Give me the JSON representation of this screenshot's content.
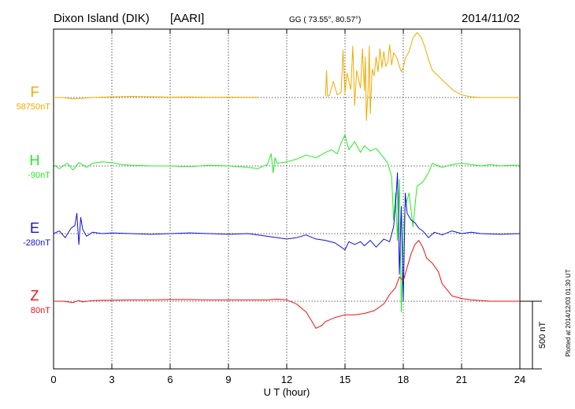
{
  "header": {
    "station": "Dixon Island (DIK)",
    "institute": "[AARI]",
    "coords": "GG ( 73.55°,  80.57°)",
    "date": "2014/11/02"
  },
  "footer": {
    "plotted": "Plotted at 2014/12/03 01:30 UT"
  },
  "chart_data": {
    "type": "line",
    "title": "Dixon Island (DIK)  [AARI]",
    "xlabel": "U T (hour)",
    "ylabel": "",
    "xlim": [
      0,
      24
    ],
    "x_ticks": [
      0,
      3,
      6,
      9,
      12,
      15,
      18,
      21,
      24
    ],
    "x_tick_labels": [
      "0",
      "3",
      "6",
      "9",
      "12",
      "15",
      "18",
      "21",
      "24"
    ],
    "scale_bar": {
      "value_nT": 500,
      "label": "500 nT"
    },
    "grid": true,
    "series": [
      {
        "name": "F",
        "baseline_label": "58750nT",
        "baseline_nT": 58750,
        "color": "#f2ab00",
        "segments": [
          {
            "x": [
              0,
              0.5,
              1,
              1.5,
              2,
              3,
              4,
              5,
              6,
              7,
              8,
              9,
              10,
              10.5
            ],
            "y": [
              0,
              0,
              -10,
              -5,
              0,
              5,
              8,
              6,
              3,
              4,
              2,
              3,
              2,
              2
            ]
          },
          {
            "x": [
              14.0,
              14.05,
              14.1,
              14.2,
              14.4,
              14.6,
              14.8,
              14.9,
              15.0,
              15.1,
              15.3,
              15.4,
              15.5,
              15.6,
              15.8,
              15.9,
              16.0,
              16.05,
              16.1,
              16.2,
              16.25,
              16.3,
              16.4,
              16.5,
              16.6,
              16.7,
              16.8,
              16.9,
              17.0,
              17.1,
              17.2,
              17.3,
              17.4,
              17.5,
              17.6,
              17.7,
              17.8,
              17.9,
              18.0,
              18.1,
              18.3,
              18.5,
              18.7,
              18.9,
              19.1,
              19.3,
              19.5,
              19.8,
              20.0,
              20.3,
              20.6,
              21.0,
              21.5,
              22.0,
              22.5,
              23.0,
              23.5,
              24.0
            ],
            "y": [
              10,
              200,
              10,
              15,
              120,
              20,
              40,
              350,
              30,
              180,
              60,
              380,
              -60,
              200,
              70,
              360,
              50,
              300,
              -170,
              90,
              380,
              -120,
              210,
              160,
              300,
              190,
              360,
              220,
              340,
              230,
              260,
              390,
              240,
              330,
              310,
              280,
              230,
              190,
              220,
              290,
              340,
              440,
              480,
              450,
              380,
              280,
              200,
              160,
              130,
              90,
              50,
              20,
              5,
              0,
              0,
              0,
              0,
              0
            ]
          }
        ]
      },
      {
        "name": "H",
        "baseline_label": "-90nT",
        "baseline_nT": -90,
        "color": "#22ee22",
        "segments": [
          {
            "x": [
              0,
              0.3,
              0.7,
              1.0,
              1.3,
              1.7,
              2.0,
              2.5,
              3.0,
              3.5,
              4.0,
              5.0,
              6.0,
              7.0,
              8.0,
              9.0,
              10.0,
              10.5,
              11.0,
              11.2,
              11.3,
              11.4,
              11.5,
              12.0,
              12.5,
              13.0,
              13.5,
              14.0,
              14.3,
              14.6,
              14.8,
              15.0,
              15.2,
              15.5,
              15.8,
              16.0,
              16.3,
              16.6,
              17.0,
              17.2,
              17.4,
              17.5,
              17.6,
              17.7,
              17.8,
              17.9,
              18.0,
              18.1,
              18.3,
              18.5,
              18.7,
              19.0,
              19.3,
              19.5,
              19.8,
              20.0,
              20.5,
              21.0,
              21.5,
              22.0,
              22.5,
              23.0,
              23.5,
              24.0
            ],
            "y": [
              10,
              -20,
              20,
              -30,
              25,
              -10,
              20,
              30,
              25,
              10,
              5,
              0,
              0,
              -5,
              5,
              0,
              -10,
              -20,
              10,
              90,
              -50,
              60,
              20,
              30,
              50,
              80,
              60,
              100,
              120,
              90,
              170,
              230,
              120,
              180,
              100,
              150,
              110,
              130,
              60,
              20,
              -80,
              -400,
              -200,
              -550,
              -100,
              -1080,
              -500,
              -300,
              -200,
              -450,
              -150,
              -120,
              -50,
              20,
              0,
              -10,
              10,
              20,
              10,
              0,
              10,
              0,
              5,
              5
            ]
          }
        ]
      },
      {
        "name": "E",
        "baseline_label": "-280nT",
        "baseline_nT": -280,
        "color": "#1111dd",
        "segments": [
          {
            "x": [
              0,
              0.3,
              0.6,
              0.9,
              1.1,
              1.2,
              1.3,
              1.4,
              1.5,
              1.7,
              2.0,
              2.5,
              3.0,
              4.0,
              5.0,
              6.0,
              7.0,
              8.0,
              9.0,
              10.0,
              11.0,
              12.0,
              12.5,
              13.0,
              13.5,
              14.0,
              14.5,
              14.8,
              15.0,
              15.2,
              15.5,
              15.8,
              16.0,
              16.3,
              16.6,
              17.0,
              17.3,
              17.5,
              17.6,
              17.7,
              17.8,
              17.9,
              18.0,
              18.1,
              18.2,
              18.4,
              18.6,
              18.8,
              19.0,
              19.3,
              19.6,
              20.0,
              20.5,
              21.0,
              21.5,
              22.0,
              23.0,
              24.0
            ],
            "y": [
              0,
              20,
              -30,
              40,
              60,
              150,
              -80,
              120,
              30,
              -20,
              10,
              0,
              5,
              0,
              -5,
              0,
              5,
              0,
              -5,
              0,
              -20,
              -40,
              -30,
              -10,
              -40,
              -50,
              -70,
              -100,
              -120,
              -60,
              -80,
              -60,
              -90,
              -50,
              -100,
              -40,
              -60,
              50,
              200,
              450,
              -300,
              200,
              -500,
              300,
              150,
              100,
              80,
              40,
              20,
              -30,
              10,
              -10,
              20,
              0,
              10,
              0,
              -5,
              0
            ]
          }
        ]
      },
      {
        "name": "Z",
        "baseline_label": "80nT",
        "baseline_nT": 80,
        "color": "#ee1111",
        "segments": [
          {
            "x": [
              0,
              0.5,
              1.0,
              1.3,
              1.5,
              2.0,
              3.0,
              4.0,
              5.0,
              6.0,
              7.0,
              8.0,
              9.0,
              10.0,
              11.0,
              11.5,
              12.0,
              12.5,
              13.0,
              13.3,
              13.5,
              13.8,
              14.0,
              14.5,
              15.0,
              15.5,
              16.0,
              16.5,
              17.0,
              17.3,
              17.6,
              17.8,
              18.0,
              18.2,
              18.4,
              18.6,
              18.8,
              19.0,
              19.2,
              19.5,
              19.8,
              20.0,
              20.5,
              21.0,
              21.5,
              22.0,
              22.5,
              23.0,
              23.5,
              24.0
            ],
            "y": [
              0,
              0,
              -10,
              5,
              -5,
              5,
              8,
              10,
              10,
              12,
              12,
              10,
              10,
              10,
              10,
              15,
              10,
              -20,
              -80,
              -150,
              -200,
              -180,
              -150,
              -120,
              -100,
              -100,
              -90,
              -70,
              -20,
              50,
              100,
              180,
              150,
              250,
              350,
              420,
              450,
              400,
              320,
              280,
              220,
              130,
              40,
              20,
              10,
              5,
              0,
              0,
              0,
              0
            ]
          }
        ]
      }
    ]
  }
}
